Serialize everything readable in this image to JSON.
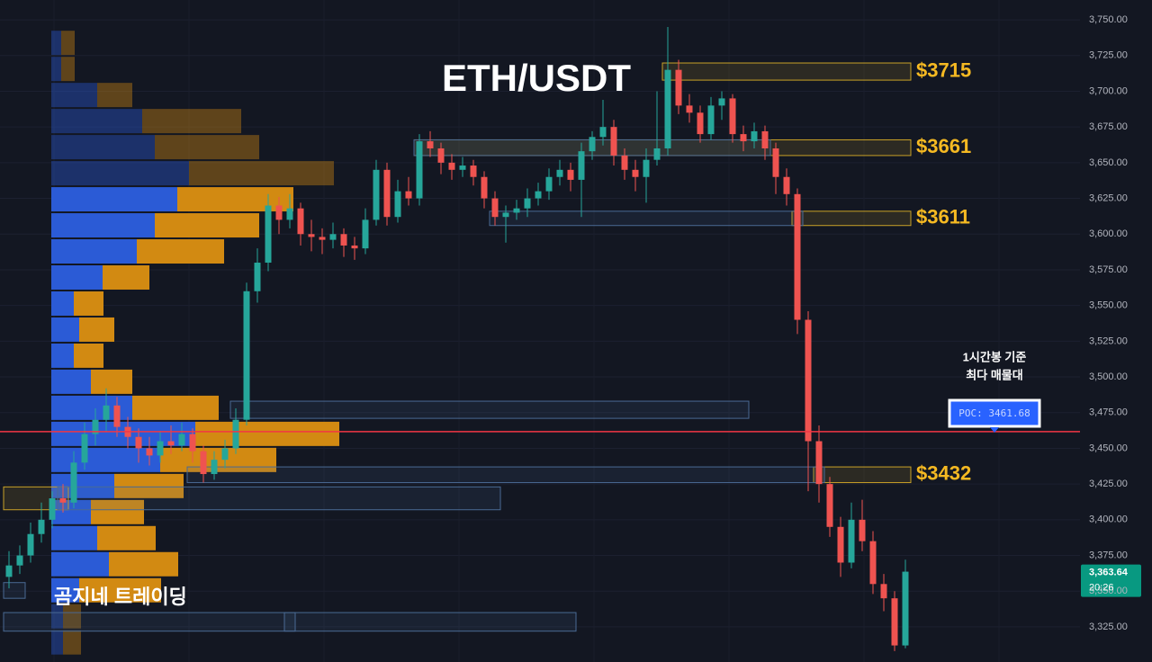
{
  "chart_data": {
    "type": "candlestick",
    "title": "ETH/USDT",
    "watermark": "곰지네 트레이딩",
    "annotation": [
      "1시간봉 기준",
      "최다 매물대"
    ],
    "ylim": [
      3300.4,
      3763.9
    ],
    "yticks": [
      {
        "value": 3325,
        "label": "3,325.00"
      },
      {
        "value": 3350,
        "label": "3,350.00"
      },
      {
        "value": 3375,
        "label": "3,375.00"
      },
      {
        "value": 3400,
        "label": "3,400.00"
      },
      {
        "value": 3425,
        "label": "3,425.00"
      },
      {
        "value": 3450,
        "label": "3,450.00"
      },
      {
        "value": 3475,
        "label": "3,475.00"
      },
      {
        "value": 3500,
        "label": "3,500.00"
      },
      {
        "value": 3525,
        "label": "3,525.00"
      },
      {
        "value": 3550,
        "label": "3,550.00"
      },
      {
        "value": 3575,
        "label": "3,575.00"
      },
      {
        "value": 3600,
        "label": "3,600.00"
      },
      {
        "value": 3625,
        "label": "3,625.00"
      },
      {
        "value": 3650,
        "label": "3,650.00"
      },
      {
        "value": 3675,
        "label": "3,675.00"
      },
      {
        "value": 3700,
        "label": "3,700.00"
      },
      {
        "value": 3725,
        "label": "3,725.00"
      },
      {
        "value": 3750,
        "label": "3,750.00"
      }
    ],
    "grid": true,
    "up_color": "#26a69a",
    "down_color": "#ef5350",
    "candles": [
      [
        3360,
        3378,
        3352,
        3368
      ],
      [
        3368,
        3382,
        3362,
        3375
      ],
      [
        3375,
        3398,
        3370,
        3390
      ],
      [
        3390,
        3412,
        3384,
        3400
      ],
      [
        3400,
        3420,
        3394,
        3415
      ],
      [
        3415,
        3425,
        3405,
        3412
      ],
      [
        3412,
        3448,
        3408,
        3440
      ],
      [
        3440,
        3468,
        3435,
        3460
      ],
      [
        3460,
        3478,
        3452,
        3470
      ],
      [
        3470,
        3492,
        3462,
        3480
      ],
      [
        3480,
        3486,
        3458,
        3465
      ],
      [
        3465,
        3472,
        3450,
        3458
      ],
      [
        3458,
        3464,
        3440,
        3450
      ],
      [
        3450,
        3458,
        3438,
        3445
      ],
      [
        3445,
        3462,
        3440,
        3455
      ],
      [
        3455,
        3466,
        3446,
        3452
      ],
      [
        3452,
        3468,
        3448,
        3460
      ],
      [
        3460,
        3464,
        3440,
        3448
      ],
      [
        3448,
        3452,
        3426,
        3432
      ],
      [
        3432,
        3448,
        3428,
        3442
      ],
      [
        3442,
        3456,
        3436,
        3450
      ],
      [
        3450,
        3478,
        3446,
        3470
      ],
      [
        3470,
        3566,
        3466,
        3560
      ],
      [
        3560,
        3590,
        3552,
        3580
      ],
      [
        3580,
        3628,
        3574,
        3620
      ],
      [
        3620,
        3626,
        3600,
        3610
      ],
      [
        3610,
        3628,
        3604,
        3618
      ],
      [
        3618,
        3622,
        3592,
        3600
      ],
      [
        3600,
        3610,
        3588,
        3598
      ],
      [
        3598,
        3604,
        3586,
        3596
      ],
      [
        3596,
        3608,
        3590,
        3600
      ],
      [
        3600,
        3604,
        3584,
        3592
      ],
      [
        3592,
        3598,
        3582,
        3590
      ],
      [
        3590,
        3618,
        3586,
        3610
      ],
      [
        3610,
        3652,
        3606,
        3645
      ],
      [
        3645,
        3650,
        3606,
        3612
      ],
      [
        3612,
        3638,
        3608,
        3630
      ],
      [
        3630,
        3640,
        3620,
        3625
      ],
      [
        3625,
        3670,
        3620,
        3665
      ],
      [
        3665,
        3672,
        3654,
        3660
      ],
      [
        3660,
        3664,
        3642,
        3650
      ],
      [
        3650,
        3656,
        3638,
        3645
      ],
      [
        3645,
        3654,
        3640,
        3648
      ],
      [
        3648,
        3652,
        3634,
        3640
      ],
      [
        3640,
        3644,
        3618,
        3625
      ],
      [
        3625,
        3630,
        3606,
        3612
      ],
      [
        3612,
        3620,
        3594,
        3615
      ],
      [
        3615,
        3624,
        3610,
        3618
      ],
      [
        3618,
        3632,
        3612,
        3625
      ],
      [
        3625,
        3636,
        3620,
        3630
      ],
      [
        3630,
        3646,
        3624,
        3640
      ],
      [
        3640,
        3652,
        3634,
        3645
      ],
      [
        3645,
        3650,
        3630,
        3638
      ],
      [
        3638,
        3664,
        3612,
        3658
      ],
      [
        3658,
        3672,
        3652,
        3668
      ],
      [
        3668,
        3694,
        3662,
        3675
      ],
      [
        3675,
        3680,
        3648,
        3655
      ],
      [
        3655,
        3660,
        3638,
        3645
      ],
      [
        3645,
        3652,
        3630,
        3640
      ],
      [
        3640,
        3660,
        3622,
        3652
      ],
      [
        3652,
        3700,
        3648,
        3660
      ],
      [
        3660,
        3745,
        3655,
        3715
      ],
      [
        3715,
        3722,
        3684,
        3690
      ],
      [
        3690,
        3698,
        3678,
        3685
      ],
      [
        3685,
        3690,
        3664,
        3670
      ],
      [
        3670,
        3696,
        3666,
        3690
      ],
      [
        3690,
        3700,
        3680,
        3695
      ],
      [
        3695,
        3698,
        3664,
        3670
      ],
      [
        3670,
        3676,
        3658,
        3665
      ],
      [
        3665,
        3678,
        3660,
        3672
      ],
      [
        3672,
        3676,
        3652,
        3660
      ],
      [
        3660,
        3664,
        3628,
        3640
      ],
      [
        3640,
        3646,
        3620,
        3628
      ],
      [
        3628,
        3632,
        3530,
        3540
      ],
      [
        3540,
        3546,
        3420,
        3455
      ],
      [
        3455,
        3466,
        3412,
        3425
      ],
      [
        3425,
        3430,
        3388,
        3395
      ],
      [
        3395,
        3402,
        3360,
        3370
      ],
      [
        3370,
        3412,
        3366,
        3400
      ],
      [
        3400,
        3414,
        3378,
        3385
      ],
      [
        3385,
        3392,
        3348,
        3355
      ],
      [
        3355,
        3362,
        3336,
        3345
      ],
      [
        3345,
        3350,
        3308,
        3312
      ],
      [
        3312,
        3372,
        3310,
        3363.64
      ]
    ],
    "profile": {
      "edges": [
        3743,
        3724.75,
        3706.5,
        3688.25,
        3670,
        3651.75,
        3633.5,
        3615.25,
        3597,
        3578.75,
        3560.5,
        3542.25,
        3524,
        3505.75,
        3487.5,
        3469.25,
        3451,
        3432.75,
        3414.5,
        3396.25,
        3378,
        3359.75,
        3341.5,
        3323.25,
        3305
      ],
      "buy": [
        11,
        11,
        51,
        101,
        115,
        153,
        140,
        115,
        95,
        57,
        25,
        31,
        25,
        44,
        90,
        160,
        121,
        70,
        44,
        51,
        64,
        31,
        13,
        13
      ],
      "sell": [
        15,
        15,
        39,
        110,
        116,
        161,
        129,
        116,
        97,
        52,
        33,
        39,
        33,
        46,
        96,
        160,
        129,
        77,
        59,
        65,
        77,
        91,
        20,
        20
      ],
      "buy_color": "#2b5bd6",
      "sell_color": "#d28a12",
      "value_area": [
        3341.5,
        3633.5
      ]
    },
    "zones": [
      {
        "low": 3707.8,
        "high": 3719.8,
        "start": 61,
        "end": 83,
        "color": "#c9a227",
        "label": "$3715"
      },
      {
        "low": 3655,
        "high": 3666,
        "start": 38,
        "end": 83,
        "color": "#c9a227",
        "label": "$3661"
      },
      {
        "low": 3606,
        "high": 3616,
        "start": 73,
        "end": 83,
        "color": "#c9a227",
        "label": "$3611"
      },
      {
        "low": 3426,
        "high": 3437,
        "start": 75,
        "end": 83,
        "color": "#c9a227",
        "label": "$3432"
      },
      {
        "low": 3407,
        "high": 3423,
        "start": 0,
        "end": 5,
        "color": "#c9a227"
      },
      {
        "low": 3655,
        "high": 3666,
        "start": 38,
        "end": 70,
        "color": "#4a6a94"
      },
      {
        "low": 3606,
        "high": 3616,
        "start": 45,
        "end": 73,
        "color": "#4a6a94"
      },
      {
        "low": 3471,
        "high": 3483,
        "start": 21,
        "end": 68,
        "color": "#4a6a94"
      },
      {
        "low": 3426,
        "high": 3437,
        "start": 17,
        "end": 75,
        "color": "#4a6a94"
      },
      {
        "low": 3407,
        "high": 3423,
        "start": 5,
        "end": 45,
        "color": "#4a6a94"
      },
      {
        "low": 3345,
        "high": 3356,
        "start": 0,
        "end": 1,
        "color": "#4a6a94"
      },
      {
        "low": 3322,
        "high": 3335,
        "start": 0,
        "end": 26,
        "color": "#4a6a94"
      },
      {
        "low": 3322,
        "high": 3335,
        "start": 26,
        "end": 52,
        "color": "#4a6a94"
      }
    ],
    "poc": {
      "value": 3461.68,
      "label": "POC: 3461.68",
      "color": "#f23645"
    },
    "last_price": {
      "value": 3363.64,
      "label": "3,363.64",
      "countdown": "20:26",
      "color": "#089981"
    }
  }
}
